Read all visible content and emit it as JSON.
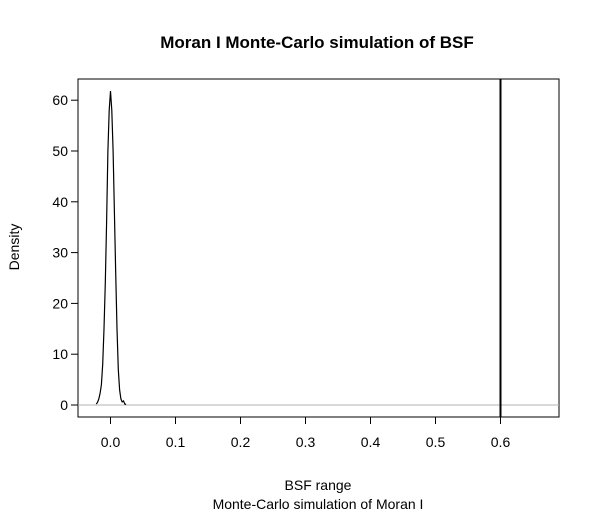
{
  "chart_data": {
    "type": "line",
    "title": "Moran I Monte-Carlo simulation of BSF",
    "xlabel": "BSF range",
    "subtitle": "Monte-Carlo simulation of Moran I",
    "ylabel": "Density",
    "xlim": [
      -0.05,
      0.69
    ],
    "ylim": [
      -2.5,
      65
    ],
    "xticks": [
      0.0,
      0.1,
      0.2,
      0.3,
      0.4,
      0.5,
      0.6
    ],
    "xtick_labels": [
      "0.0",
      "0.1",
      "0.2",
      "0.3",
      "0.4",
      "0.5",
      "0.6"
    ],
    "yticks": [
      0,
      10,
      20,
      30,
      40,
      50,
      60
    ],
    "ytick_labels": [
      "0",
      "10",
      "20",
      "30",
      "40",
      "50",
      "60"
    ],
    "grid": false,
    "series": [
      {
        "x": [
          -0.022,
          -0.02,
          -0.018,
          -0.016,
          -0.014,
          -0.012,
          -0.01,
          -0.008,
          -0.006,
          -0.004,
          -0.002,
          0.0,
          0.002,
          0.004,
          0.006,
          0.008,
          0.01,
          0.012,
          0.014,
          0.016,
          0.018,
          0.02,
          0.022,
          0.024
        ],
        "values": [
          0.2,
          0.5,
          1.2,
          2.3,
          4.0,
          8.0,
          15.0,
          24.0,
          36.0,
          50.0,
          58.0,
          61.8,
          58.0,
          50.0,
          38.0,
          26.0,
          15.0,
          7.0,
          3.0,
          1.2,
          0.6,
          0.8,
          0.2,
          0.1
        ]
      }
    ],
    "baseline_y": 0,
    "baseline_color": "#b3b3b3",
    "observed_line_x": 0.6,
    "observed_line_color": "#000000"
  }
}
